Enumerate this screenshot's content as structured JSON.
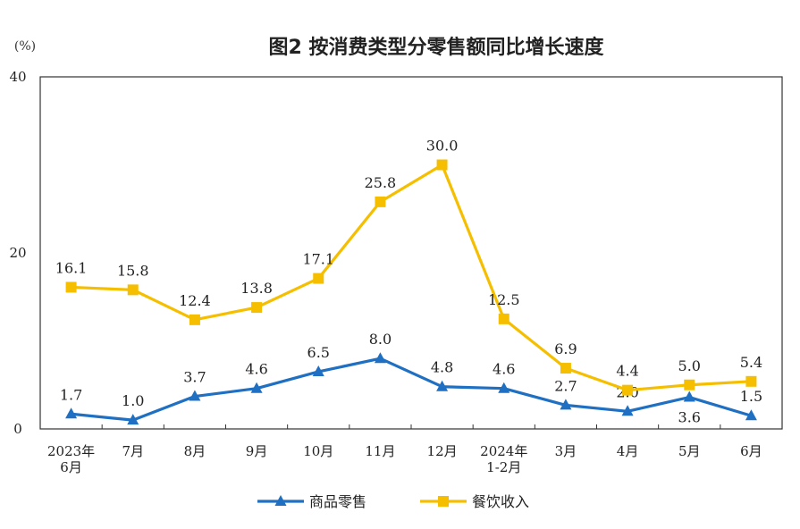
{
  "chart_data": {
    "type": "line",
    "title": "图2  按消费类型分零售额同比增长速度",
    "unit": "(%)",
    "ylim": [
      0,
      40
    ],
    "yticks": [
      "0",
      "20",
      "40"
    ],
    "categories": [
      [
        "2023年",
        "6月"
      ],
      [
        "7月"
      ],
      [
        "8月"
      ],
      [
        "9月"
      ],
      [
        "10月"
      ],
      [
        "11月"
      ],
      [
        "12月"
      ],
      [
        "2024年",
        "1-2月"
      ],
      [
        "3月"
      ],
      [
        "4月"
      ],
      [
        "5月"
      ],
      [
        "6月"
      ]
    ],
    "series": [
      {
        "name": "商品零售",
        "color": "#1f6fc2",
        "marker": "triangle",
        "values": [
          1.7,
          1.0,
          3.7,
          4.6,
          6.5,
          8.0,
          4.8,
          4.6,
          2.7,
          2.0,
          3.6,
          1.5
        ],
        "labels": [
          "1.7",
          "1.0",
          "3.7",
          "4.6",
          "6.5",
          "8.0",
          "4.8",
          "4.6",
          "2.7",
          "2.0",
          "3.6",
          "1.5"
        ]
      },
      {
        "name": "餐饮收入",
        "color": "#f5bf00",
        "marker": "square",
        "values": [
          16.1,
          15.8,
          12.4,
          13.8,
          17.1,
          25.8,
          30.0,
          12.5,
          6.9,
          4.4,
          5.0,
          5.4
        ],
        "labels": [
          "16.1",
          "15.8",
          "12.4",
          "13.8",
          "17.1",
          "25.8",
          "30.0",
          "12.5",
          "6.9",
          "4.4",
          "5.0",
          "5.4"
        ]
      }
    ],
    "grid": false,
    "legend_position": "bottom"
  }
}
